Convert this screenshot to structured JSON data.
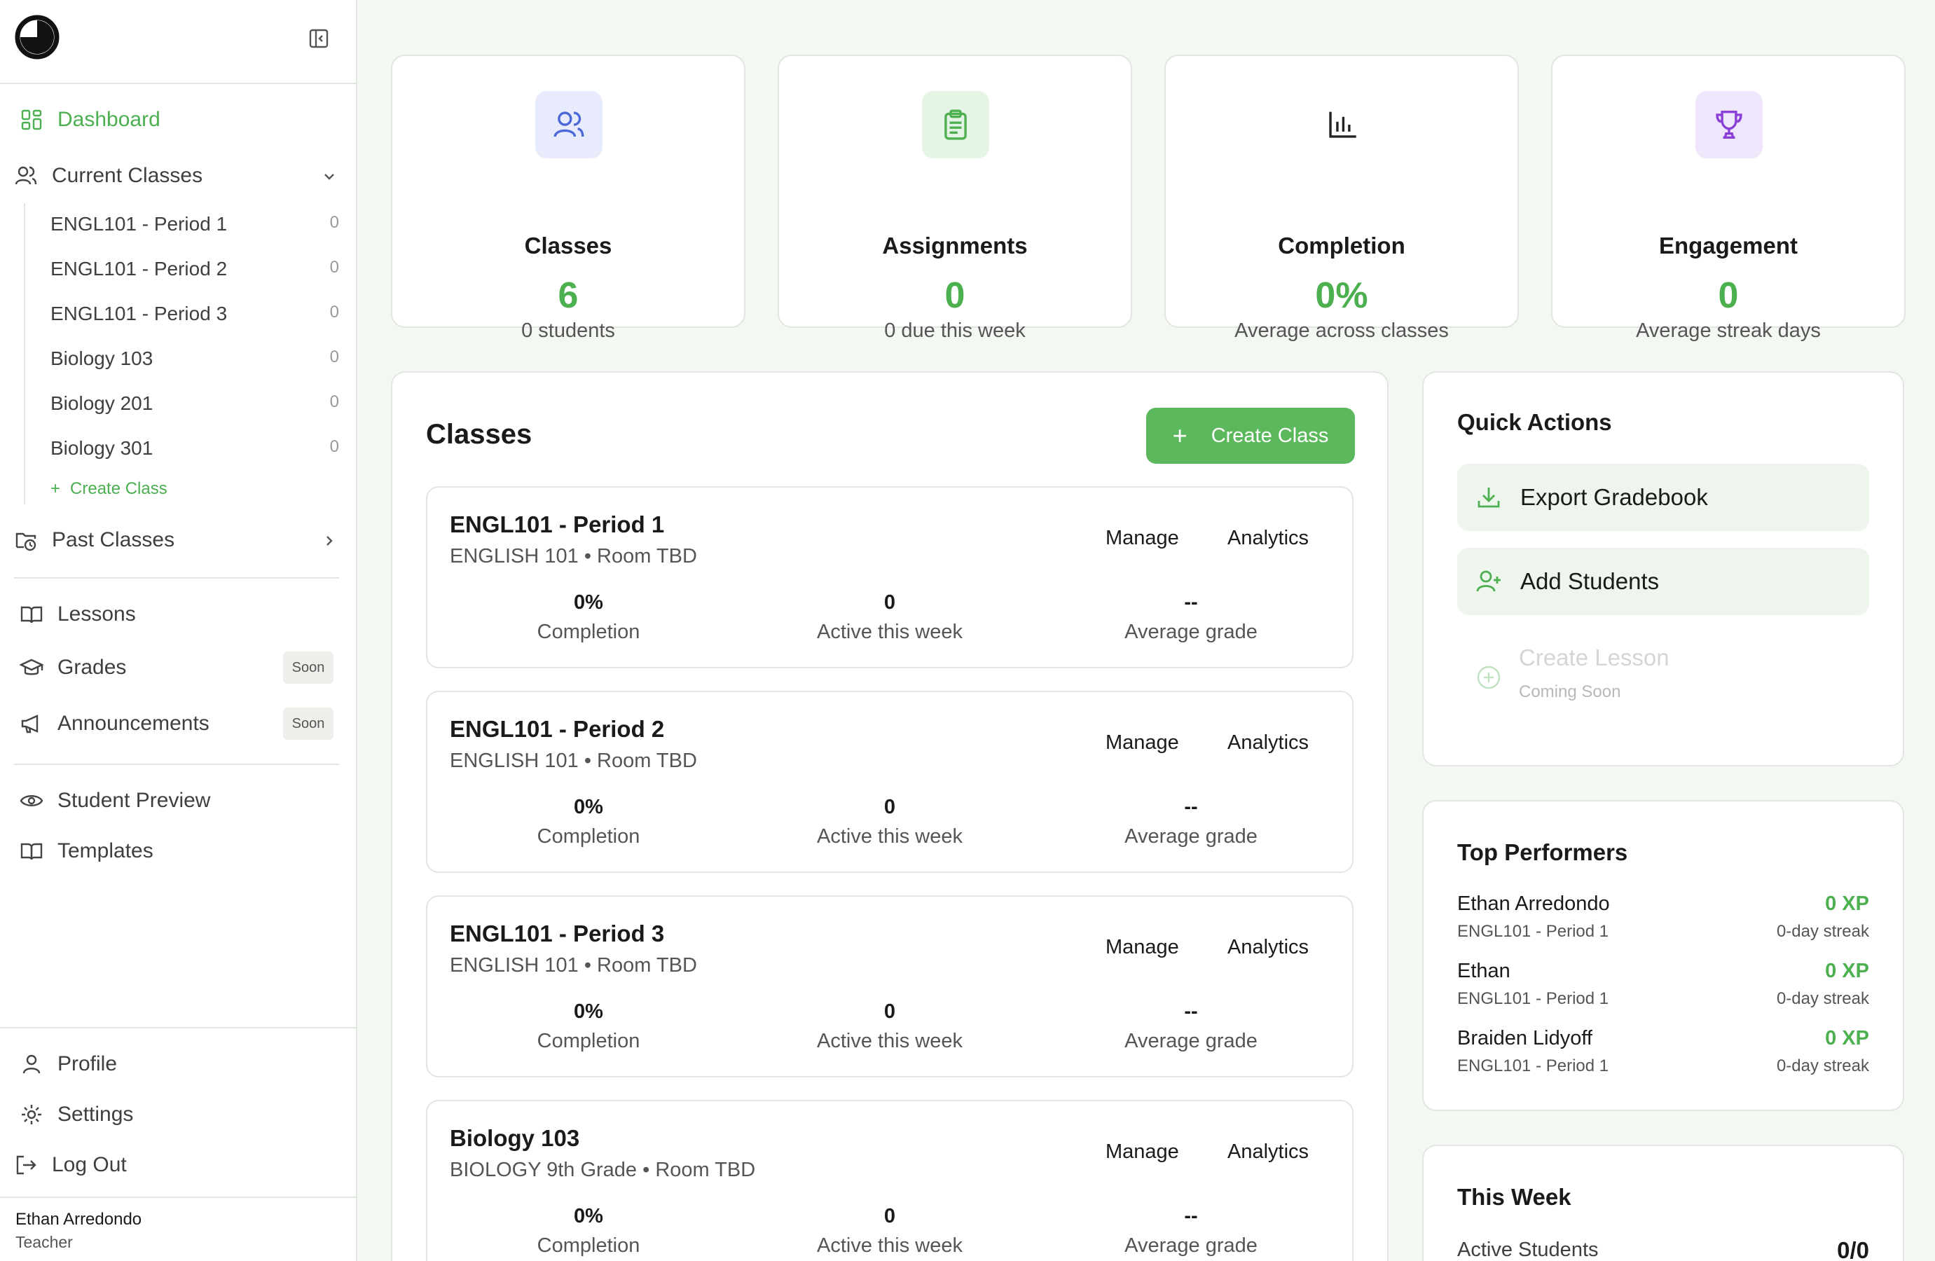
{
  "sidebar": {
    "nav": {
      "dashboard": "Dashboard",
      "current_classes": "Current Classes",
      "past_classes": "Past Classes",
      "lessons": "Lessons",
      "grades": "Grades",
      "announcements": "Announcements",
      "student_preview": "Student Preview",
      "templates": "Templates",
      "profile": "Profile",
      "settings": "Settings",
      "log_out": "Log Out"
    },
    "current_class_items": [
      {
        "label": "ENGL101 - Period 1",
        "count": "0"
      },
      {
        "label": "ENGL101 - Period 2",
        "count": "0"
      },
      {
        "label": "ENGL101 - Period 3",
        "count": "0"
      },
      {
        "label": "Biology 103",
        "count": "0"
      },
      {
        "label": "Biology 201",
        "count": "0"
      },
      {
        "label": "Biology 301",
        "count": "0"
      }
    ],
    "create_class": "Create Class",
    "soon_badge": "Soon",
    "user": {
      "name": "Ethan Arredondo",
      "role": "Teacher"
    }
  },
  "stats": [
    {
      "label": "Classes",
      "value": "6",
      "sub": "0 students",
      "icon": "users-icon",
      "badge_color": "#e8ebfb",
      "icon_color": "#4a68d8"
    },
    {
      "label": "Assignments",
      "value": "0",
      "sub": "0 due this week",
      "icon": "clipboard-icon",
      "badge_color": "#e4f5e6",
      "icon_color": "#4caf50"
    },
    {
      "label": "Completion",
      "value": "0%",
      "sub": "Average across classes",
      "icon": "bar-chart-icon",
      "badge_color": "#ffffff",
      "icon_color": "#222222"
    },
    {
      "label": "Engagement",
      "value": "0",
      "sub": "Average streak days",
      "icon": "trophy-icon",
      "badge_color": "#efe6fb",
      "icon_color": "#8a3fd8"
    }
  ],
  "classes_panel": {
    "title": "Classes",
    "create_button": "Create Class",
    "manage_label": "Manage",
    "analytics_label": "Analytics",
    "stat_labels": {
      "completion": "Completion",
      "active": "Active this week",
      "grade": "Average grade"
    },
    "classes": [
      {
        "name": "ENGL101 - Period 1",
        "meta": "ENGLISH 101 • Room TBD",
        "completion": "0%",
        "active": "0",
        "grade": "--"
      },
      {
        "name": "ENGL101 - Period 2",
        "meta": "ENGLISH 101 • Room TBD",
        "completion": "0%",
        "active": "0",
        "grade": "--"
      },
      {
        "name": "ENGL101 - Period 3",
        "meta": "ENGLISH 101 • Room TBD",
        "completion": "0%",
        "active": "0",
        "grade": "--"
      },
      {
        "name": "Biology 103",
        "meta": "BIOLOGY 9th Grade • Room TBD",
        "completion": "0%",
        "active": "0",
        "grade": "--"
      }
    ]
  },
  "quick_actions": {
    "title": "Quick Actions",
    "export_gradebook": "Export Gradebook",
    "add_students": "Add Students",
    "create_lesson": "Create Lesson",
    "coming_soon": "Coming Soon"
  },
  "top_performers": {
    "title": "Top Performers",
    "rows": [
      {
        "name": "Ethan Arredondo",
        "class": "ENGL101 - Period 1",
        "xp": "0 XP",
        "streak": "0-day streak"
      },
      {
        "name": "Ethan",
        "class": "ENGL101 - Period 1",
        "xp": "0 XP",
        "streak": "0-day streak"
      },
      {
        "name": "Braiden Lidyoff",
        "class": "ENGL101 - Period 1",
        "xp": "0 XP",
        "streak": "0-day streak"
      }
    ]
  },
  "this_week": {
    "title": "This Week",
    "active_students_label": "Active Students",
    "active_students_value": "0/0"
  }
}
